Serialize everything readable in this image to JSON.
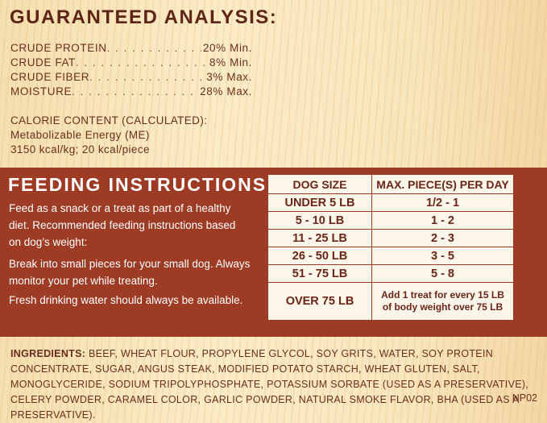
{
  "guaranteed_analysis": {
    "title": "GUARANTEED ANALYSIS:",
    "rows": [
      {
        "label": "CRUDE PROTEIN",
        "value": "20% Min."
      },
      {
        "label": "CRUDE FAT",
        "value": "8% Min."
      },
      {
        "label": "CRUDE FIBER",
        "value": "3% Max."
      },
      {
        "label": "MOISTURE",
        "value": "28% Max."
      }
    ]
  },
  "calorie": {
    "heading": "CALORIE CONTENT (CALCULATED):",
    "line1": "Metabolizable Energy (ME)",
    "line2": "3150 kcal/kg; 20 kcal/piece"
  },
  "feeding": {
    "title": "FEEDING INSTRUCTIONS",
    "para1": "Feed as a snack or a treat as part of a healthy diet. Recommended feeding instructions based on dog’s weight:",
    "para2": "Break into small pieces for your small dog. Always monitor your pet while treating.",
    "para3": "Fresh drinking water should always be available.",
    "table": {
      "headers": [
        "DOG SIZE",
        "MAX. PIECE(S) PER DAY"
      ],
      "rows": [
        [
          "UNDER 5 LB",
          "1/2 - 1"
        ],
        [
          "5 - 10 LB",
          "1 - 2"
        ],
        [
          "11 - 25 LB",
          "2 - 3"
        ],
        [
          "26 - 50 LB",
          "3 - 5"
        ],
        [
          "51 - 75 LB",
          "5 - 8"
        ],
        [
          "OVER 75 LB",
          "Add 1 treat for every 15 LB of body weight over 75 LB"
        ]
      ]
    }
  },
  "ingredients": {
    "heading": "INGREDIENTS:",
    "text": "BEEF, WHEAT FLOUR, PROPYLENE GLYCOL, SOY GRITS, WATER, SOY PROTEIN CONCENTRATE, SUGAR, ANGUS STEAK, MODIFIED POTATO STARCH, WHEAT GLUTEN, SALT, MONOGLYCERIDE, SODIUM TRIPOLYPHOSPHATE, POTASSIUM SORBATE (USED AS A PRESERVATIVE), CELERY POWDER, CARAMEL COLOR, GARLIC POWDER, NATURAL SMOKE FLAVOR, BHA (USED AS A PRESERVATIVE).",
    "code": "NP02"
  }
}
